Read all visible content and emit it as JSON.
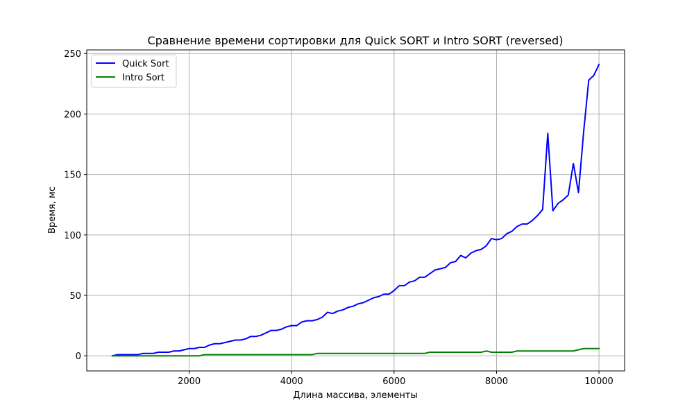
{
  "chart_data": {
    "type": "line",
    "title": "Сравнение времени сортировки для Quick SORT и Intro SORT (reversed)",
    "xlabel": "Длина массива, элементы",
    "ylabel": "Время, мс",
    "xlim": [
      0,
      10500
    ],
    "ylim": [
      -12.5,
      253
    ],
    "xticks": [
      2000,
      4000,
      6000,
      8000,
      10000
    ],
    "yticks": [
      0,
      50,
      100,
      150,
      200,
      250
    ],
    "grid": true,
    "legend_position": "top-left",
    "x": [
      500,
      600,
      700,
      800,
      900,
      1000,
      1100,
      1200,
      1300,
      1400,
      1500,
      1600,
      1700,
      1800,
      1900,
      2000,
      2100,
      2200,
      2300,
      2400,
      2500,
      2600,
      2700,
      2800,
      2900,
      3000,
      3100,
      3200,
      3300,
      3400,
      3500,
      3600,
      3700,
      3800,
      3900,
      4000,
      4100,
      4200,
      4300,
      4400,
      4500,
      4600,
      4700,
      4800,
      4900,
      5000,
      5100,
      5200,
      5300,
      5400,
      5500,
      5600,
      5700,
      5800,
      5900,
      6000,
      6100,
      6200,
      6300,
      6400,
      6500,
      6600,
      6700,
      6800,
      6900,
      7000,
      7100,
      7200,
      7300,
      7400,
      7500,
      7600,
      7700,
      7800,
      7900,
      8000,
      8100,
      8200,
      8300,
      8400,
      8500,
      8600,
      8700,
      8800,
      8900,
      9000,
      9100,
      9200,
      9300,
      9400,
      9500,
      9600,
      9700,
      9800,
      9900,
      10000
    ],
    "series": [
      {
        "name": "Quick Sort",
        "color": "#0000ff",
        "values": [
          0,
          1,
          1,
          1,
          1,
          1,
          2,
          2,
          2,
          3,
          3,
          3,
          4,
          4,
          5,
          6,
          6,
          7,
          7,
          9,
          10,
          10,
          11,
          12,
          13,
          13,
          14,
          16,
          16,
          17,
          19,
          21,
          21,
          22,
          24,
          25,
          25,
          28,
          29,
          29,
          30,
          32,
          36,
          35,
          37,
          38,
          40,
          41,
          43,
          44,
          46,
          48,
          49,
          51,
          51,
          54,
          58,
          58,
          61,
          62,
          65,
          65,
          68,
          71,
          72,
          73,
          77,
          78,
          83,
          81,
          85,
          87,
          88,
          91,
          97,
          96,
          97,
          101,
          103,
          107,
          109,
          109,
          112,
          116,
          121,
          184,
          120,
          126,
          129,
          133,
          159,
          135,
          185,
          228,
          232,
          241
        ]
      },
      {
        "name": "Intro Sort",
        "color": "#008000",
        "values": [
          0,
          0,
          0,
          0,
          0,
          0,
          0,
          0,
          0,
          0,
          0,
          0,
          0,
          0,
          0,
          0,
          0,
          0,
          1,
          1,
          1,
          1,
          1,
          1,
          1,
          1,
          1,
          1,
          1,
          1,
          1,
          1,
          1,
          1,
          1,
          1,
          1,
          1,
          1,
          1,
          2,
          2,
          2,
          2,
          2,
          2,
          2,
          2,
          2,
          2,
          2,
          2,
          2,
          2,
          2,
          2,
          2,
          2,
          2,
          2,
          2,
          2,
          3,
          3,
          3,
          3,
          3,
          3,
          3,
          3,
          3,
          3,
          3,
          4,
          3,
          3,
          3,
          3,
          3,
          4,
          4,
          4,
          4,
          4,
          4,
          4,
          4,
          4,
          4,
          4,
          4,
          5,
          6,
          6,
          6,
          6
        ]
      }
    ]
  }
}
